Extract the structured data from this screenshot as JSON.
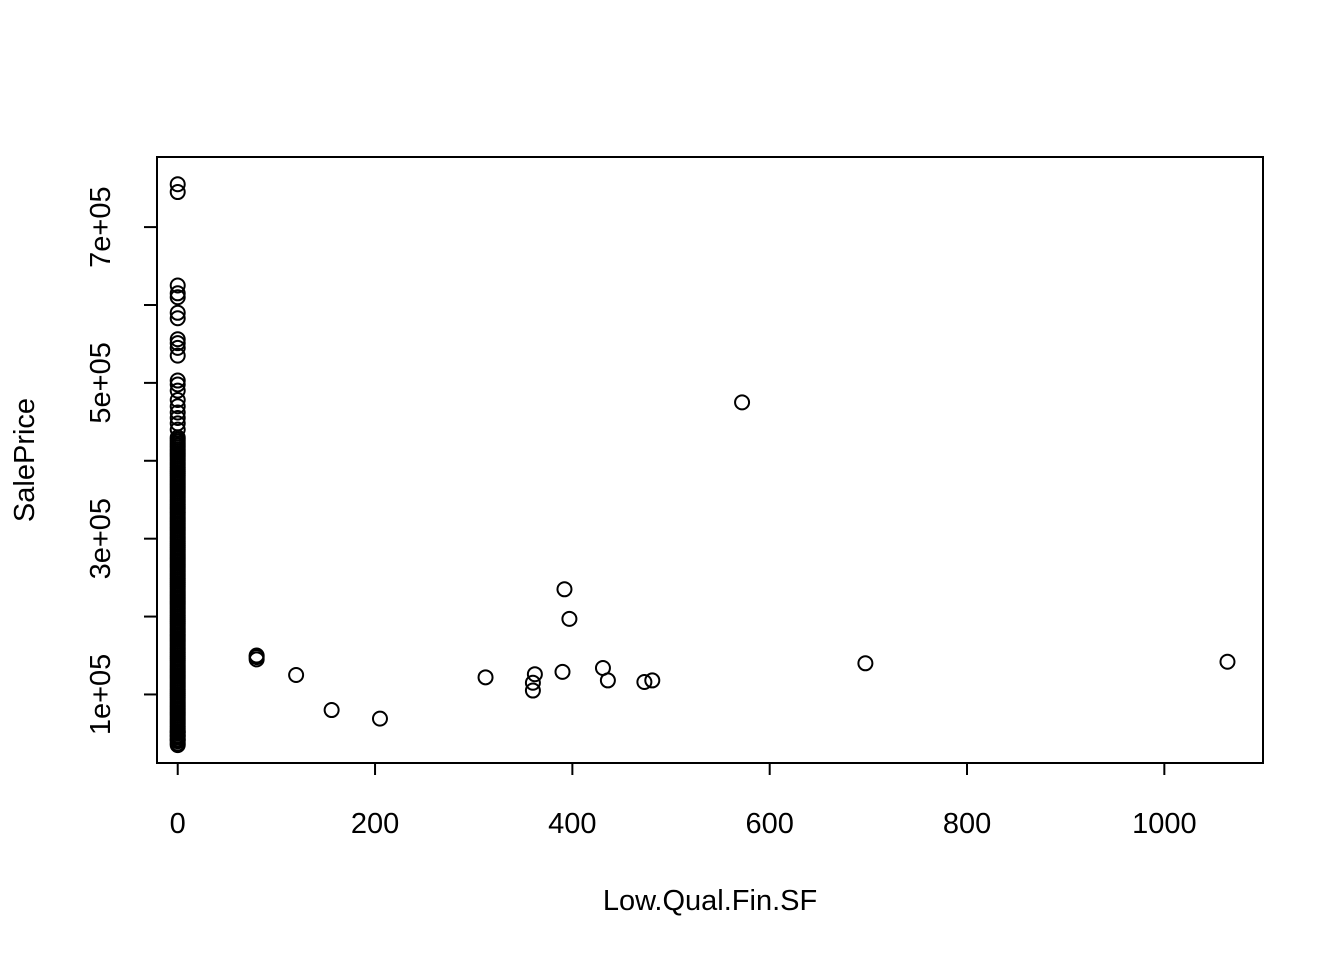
{
  "chart_data": {
    "type": "scatter",
    "title": "",
    "xlabel": "Low.Qual.Fin.SF",
    "ylabel": "SalePrice",
    "xlim": [
      -21,
      1100
    ],
    "ylim": [
      12000,
      790000
    ],
    "x_ticks": [
      {
        "value": 0,
        "label": "0"
      },
      {
        "value": 200,
        "label": "200"
      },
      {
        "value": 400,
        "label": "400"
      },
      {
        "value": 600,
        "label": "600"
      },
      {
        "value": 800,
        "label": "800"
      },
      {
        "value": 1000,
        "label": "1000"
      }
    ],
    "y_ticks": [
      {
        "value": 100000,
        "label": "1e+05"
      },
      {
        "value": 200000,
        "label": ""
      },
      {
        "value": 300000,
        "label": "3e+05"
      },
      {
        "value": 400000,
        "label": ""
      },
      {
        "value": 500000,
        "label": "5e+05"
      },
      {
        "value": 600000,
        "label": ""
      },
      {
        "value": 700000,
        "label": "7e+05"
      }
    ],
    "grid": false,
    "legend": "none",
    "marker": "open-circle",
    "series": [
      {
        "points": [
          [
            80,
            145000
          ],
          [
            80,
            148000
          ],
          [
            80,
            150000
          ],
          [
            120,
            125000
          ],
          [
            156,
            80000
          ],
          [
            205,
            69000
          ],
          [
            312,
            122000
          ],
          [
            360,
            105000
          ],
          [
            360,
            115000
          ],
          [
            362,
            126000
          ],
          [
            390,
            129000
          ],
          [
            392,
            235000
          ],
          [
            397,
            197000
          ],
          [
            431,
            134000
          ],
          [
            436,
            118000
          ],
          [
            473,
            116000
          ],
          [
            481,
            118000
          ],
          [
            572,
            475000
          ],
          [
            697,
            140000
          ],
          [
            1064,
            142000
          ]
        ]
      }
    ],
    "x0_cluster": {
      "x": 0,
      "dense_range": [
        40000,
        430000
      ],
      "extra_values": [
        35000,
        37000,
        42000,
        47000,
        52000,
        440000,
        448000,
        455000,
        462000,
        470000,
        478000,
        490000,
        498000,
        503000,
        535000,
        545000,
        551000,
        556000,
        583000,
        590000,
        610000,
        615000,
        625000,
        745000,
        755000
      ]
    }
  }
}
